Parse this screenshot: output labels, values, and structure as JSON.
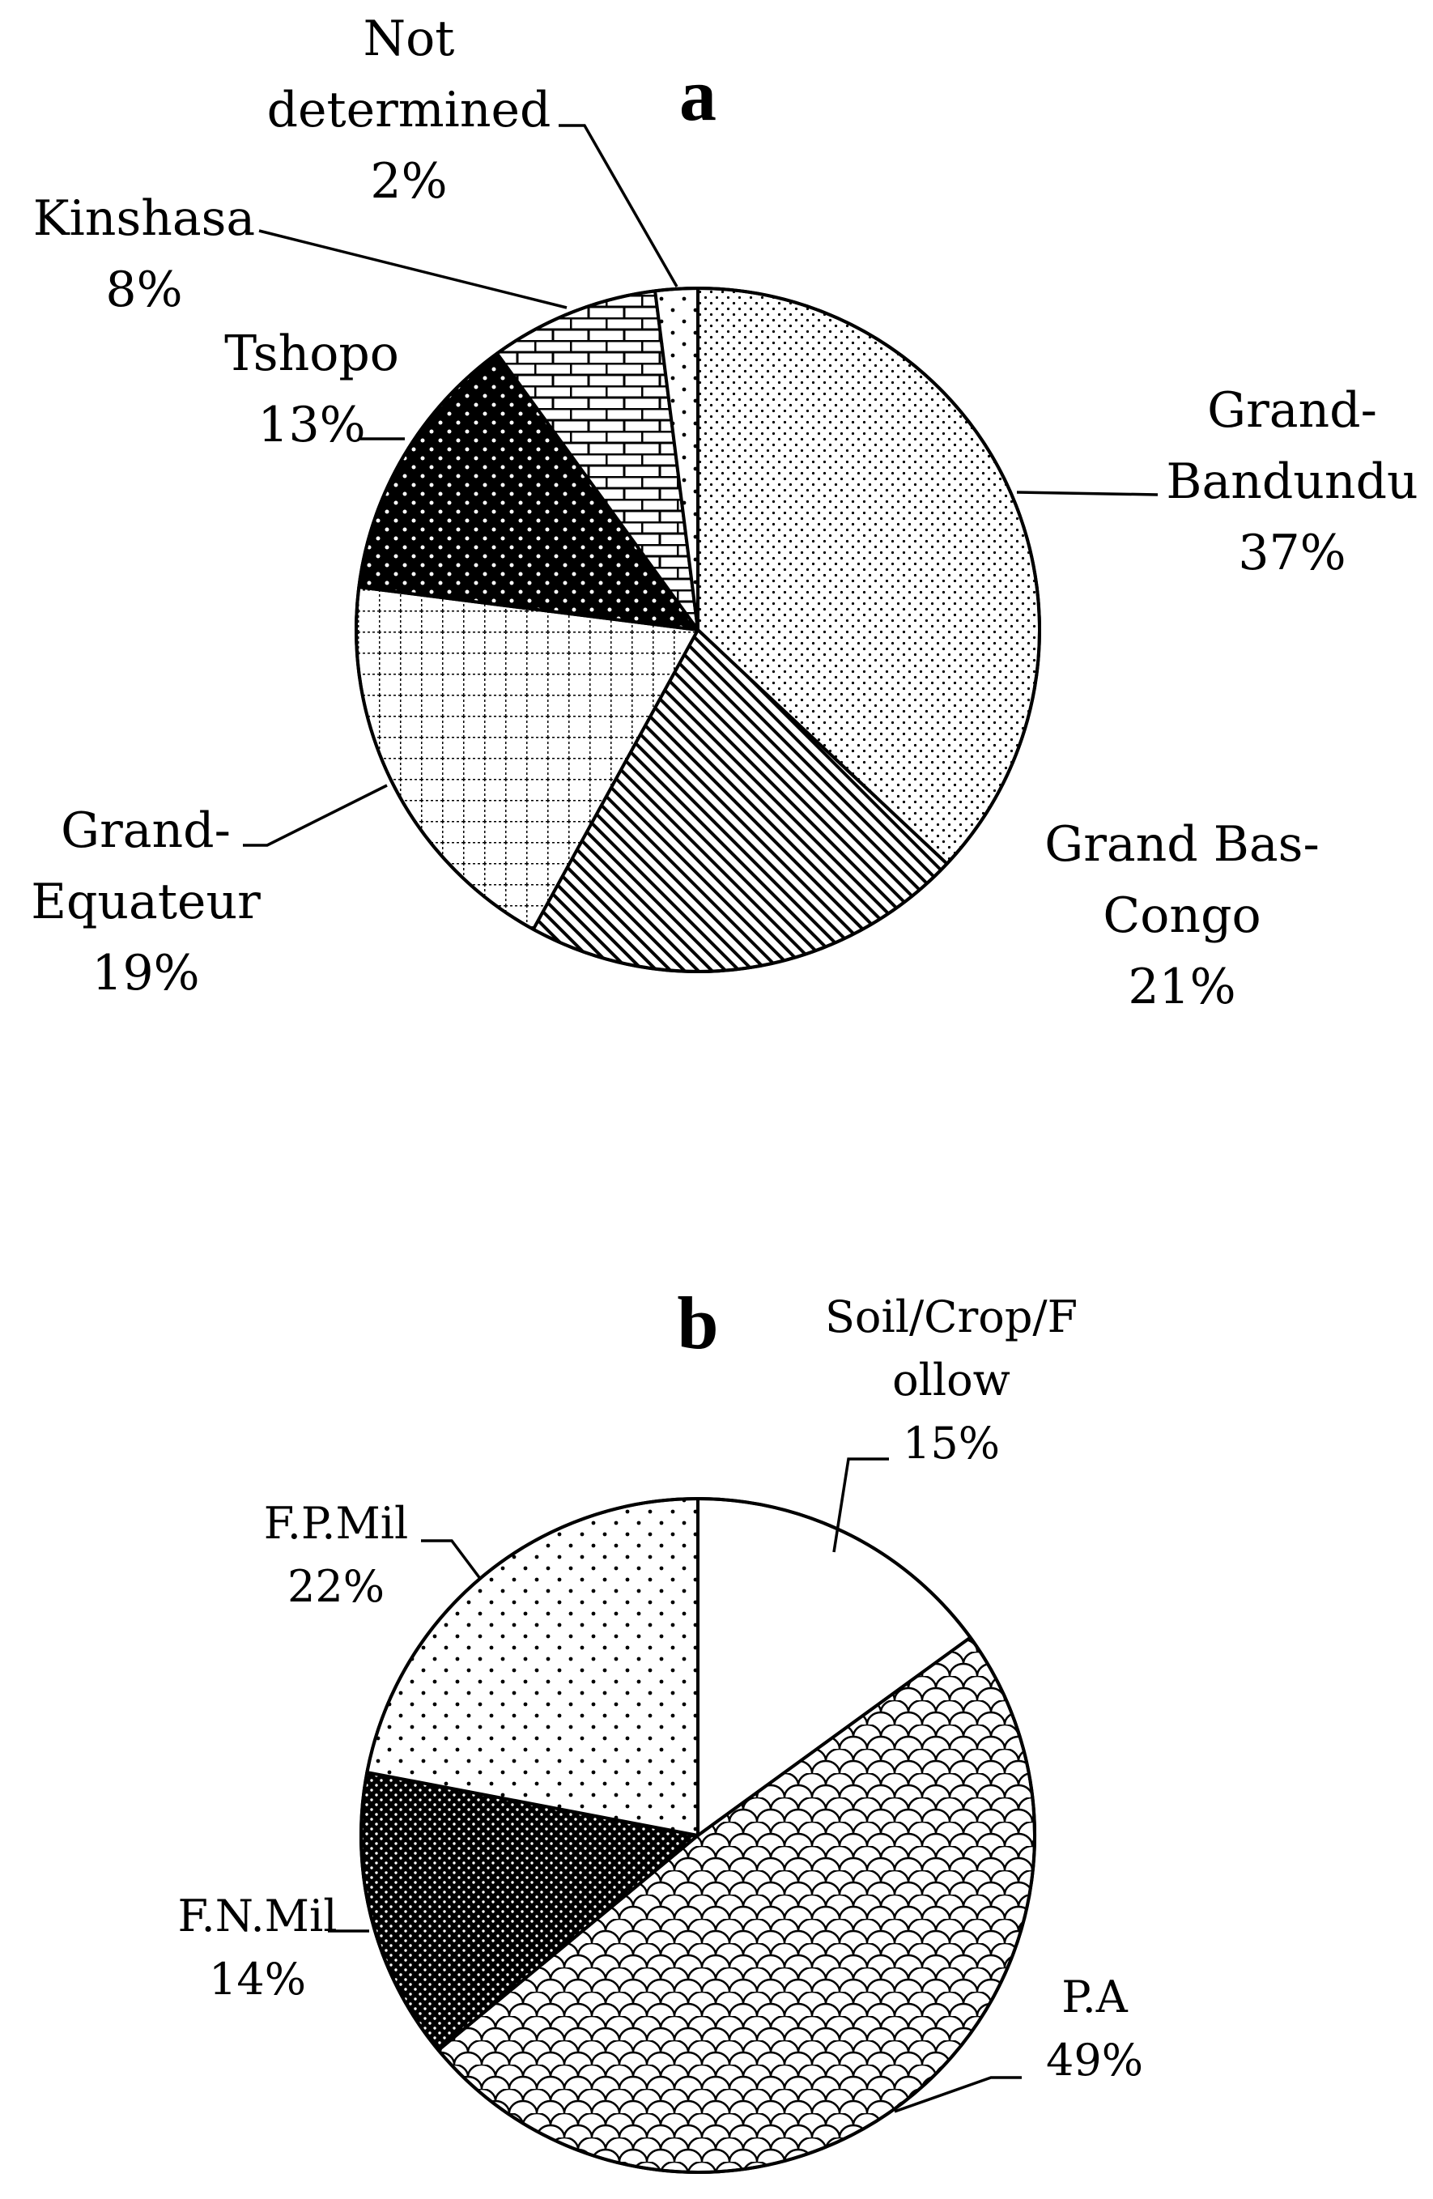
{
  "chart_data": [
    {
      "type": "pie",
      "panel_label": "a",
      "categories": [
        "Grand-Bandundu",
        "Grand Bas-Congo",
        "Grand-Equateur",
        "Tshopo",
        "Kinshasa",
        "Not determined"
      ],
      "values": [
        37,
        21,
        19,
        13,
        8,
        2
      ],
      "slices": [
        {
          "name": "Grand-Bandundu",
          "lines": [
            "Grand-",
            "Bandundu",
            "37%"
          ],
          "pattern": "fine-dots"
        },
        {
          "name": "Grand Bas-Congo",
          "lines": [
            "Grand Bas-",
            "Congo",
            "21%"
          ],
          "pattern": "diagonal-hatch"
        },
        {
          "name": "Grand-Equateur",
          "lines": [
            "Grand-",
            "Equateur",
            "19%"
          ],
          "pattern": "dotted-grid"
        },
        {
          "name": "Tshopo",
          "lines": [
            "Tshopo",
            "13%"
          ],
          "pattern": "black-with-white-dots"
        },
        {
          "name": "Kinshasa",
          "lines": [
            "Kinshasa",
            "8%"
          ],
          "pattern": "brick"
        },
        {
          "name": "Not determined",
          "lines": [
            "Not",
            "determined",
            "2%"
          ],
          "pattern": "sparse-dots"
        }
      ],
      "start": "12 o'clock",
      "direction": "clockwise"
    },
    {
      "type": "pie",
      "panel_label": "b",
      "categories": [
        "Soil/Crop/Follow",
        "P.A",
        "F.N.Mil",
        "F.P.Mil"
      ],
      "values": [
        15,
        49,
        14,
        22
      ],
      "slices": [
        {
          "name": "Soil/Crop/Follow",
          "lines": [
            "Soil/Crop/F",
            "ollow",
            "15%"
          ],
          "pattern": "white"
        },
        {
          "name": "P.A",
          "lines": [
            "P.A",
            "49%"
          ],
          "pattern": "scale"
        },
        {
          "name": "F.N.Mil",
          "lines": [
            "F.N.Mil",
            "14%"
          ],
          "pattern": "dense-dots"
        },
        {
          "name": "F.P.Mil",
          "lines": [
            "F.P.Mil",
            "22%"
          ],
          "pattern": "sparse-dots"
        }
      ],
      "start": "12 o'clock",
      "direction": "clockwise"
    }
  ]
}
